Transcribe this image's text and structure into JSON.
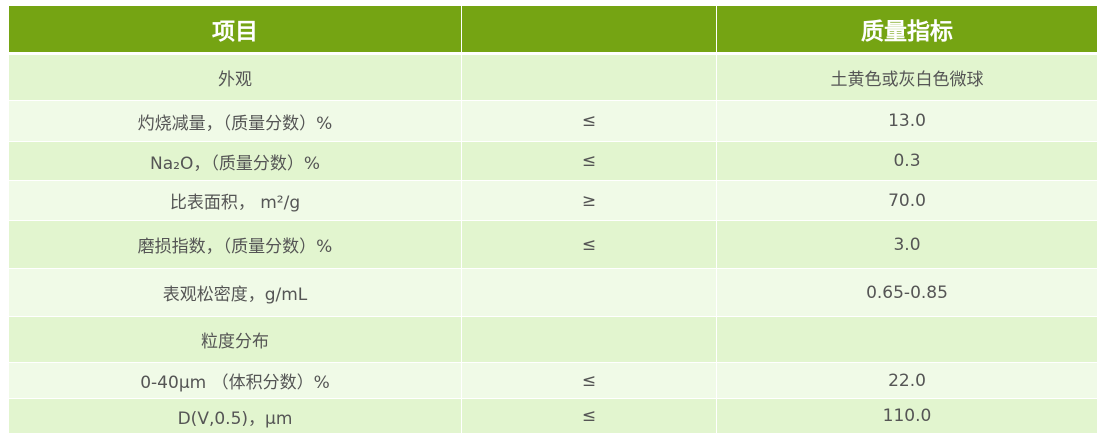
{
  "header": {
    "item": "项目",
    "spec": "质量指标"
  },
  "rows": [
    {
      "item": "外观",
      "op": "",
      "value": "土黄色或灰白色微球"
    },
    {
      "item": "灼烧减量，（质量分数）%",
      "op": "≤",
      "value": "13.0"
    },
    {
      "item": "Na₂O，（质量分数）%",
      "op": "≤",
      "value": "0.3"
    },
    {
      "item": "比表面积， m²/g",
      "op": "≥",
      "value": "70.0"
    },
    {
      "item": "磨损指数，（质量分数）%",
      "op": "≤",
      "value": "3.0"
    },
    {
      "item": "表观松密度，g/mL",
      "op": "",
      "value": "0.65-0.85"
    },
    {
      "item": "粒度分布",
      "op": "",
      "value": ""
    },
    {
      "item": "0-40μm （体积分数）%",
      "op": "≤",
      "value": "22.0"
    },
    {
      "item": "D(V,0.5)，μm",
      "op": "≤",
      "value": "110.0"
    }
  ]
}
